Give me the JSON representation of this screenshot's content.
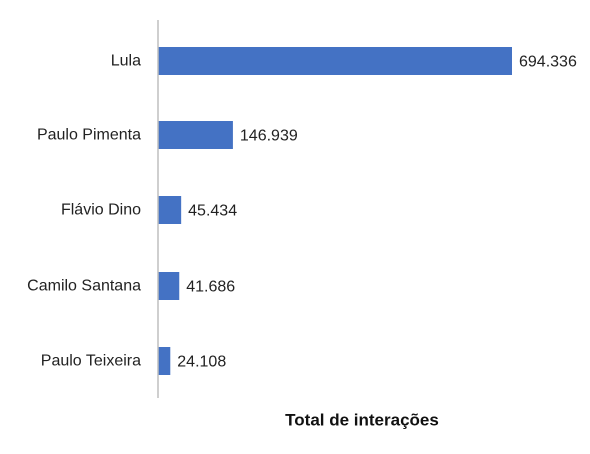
{
  "chart_data": {
    "type": "bar",
    "orientation": "horizontal",
    "categories": [
      "Lula",
      "Paulo Pimenta",
      "Flávio Dino",
      "Camilo Santana",
      "Paulo Teixeira"
    ],
    "values": [
      694336,
      146939,
      45434,
      41686,
      24108
    ],
    "value_labels": [
      "694.336",
      "146.939",
      "45.434",
      "41.686",
      "24.108"
    ],
    "xlabel": "Total de interações",
    "ylabel": "",
    "title": "",
    "xlim": [
      0,
      694336
    ],
    "grid": false,
    "legend": "none",
    "bar_color": "#4472C4",
    "axis_color": "#BFBFBF"
  }
}
